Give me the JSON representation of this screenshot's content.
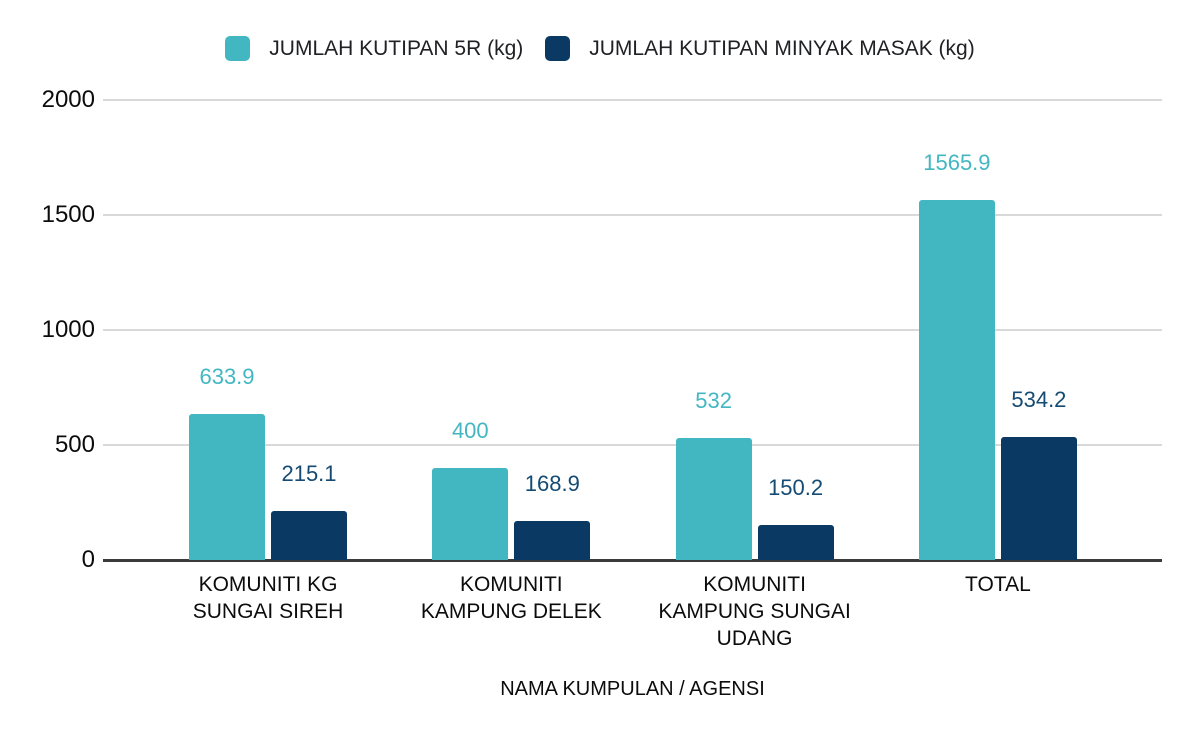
{
  "chart_data": {
    "type": "bar",
    "title": "",
    "categories": [
      "KOMUNITI KG SUNGAI SIREH",
      "KOMUNITI KAMPUNG DELEK",
      "KOMUNITI KAMPUNG SUNGAI UDANG",
      "TOTAL"
    ],
    "category_lines": [
      [
        "KOMUNITI KG",
        "SUNGAI SIREH"
      ],
      [
        "KOMUNITI",
        "KAMPUNG DELEK"
      ],
      [
        "KOMUNITI",
        "KAMPUNG SUNGAI",
        "UDANG"
      ],
      [
        "TOTAL"
      ]
    ],
    "series": [
      {
        "name": "JUMLAH KUTIPAN 5R (kg)",
        "color": "#43b7c1",
        "label_color": "#43b7c1",
        "values": [
          633.9,
          400,
          532,
          1565.9
        ]
      },
      {
        "name": "JUMLAH KUTIPAN MINYAK MASAK (kg)",
        "color": "#0a3a63",
        "label_color": "#154a72",
        "values": [
          215.1,
          168.9,
          150.2,
          534.2
        ]
      }
    ],
    "xlabel": "NAMA KUMPULAN / AGENSI",
    "ylabel": "",
    "y_ticks": [
      0,
      500,
      1000,
      1500,
      2000
    ],
    "ylim": [
      0,
      2000
    ],
    "grid": true,
    "legend_position": "top",
    "annotations_shown": true
  },
  "colors": {
    "grid": "#d9d9d9",
    "axis_baseline": "#3b3b3b",
    "text": "#0c0c0c"
  }
}
